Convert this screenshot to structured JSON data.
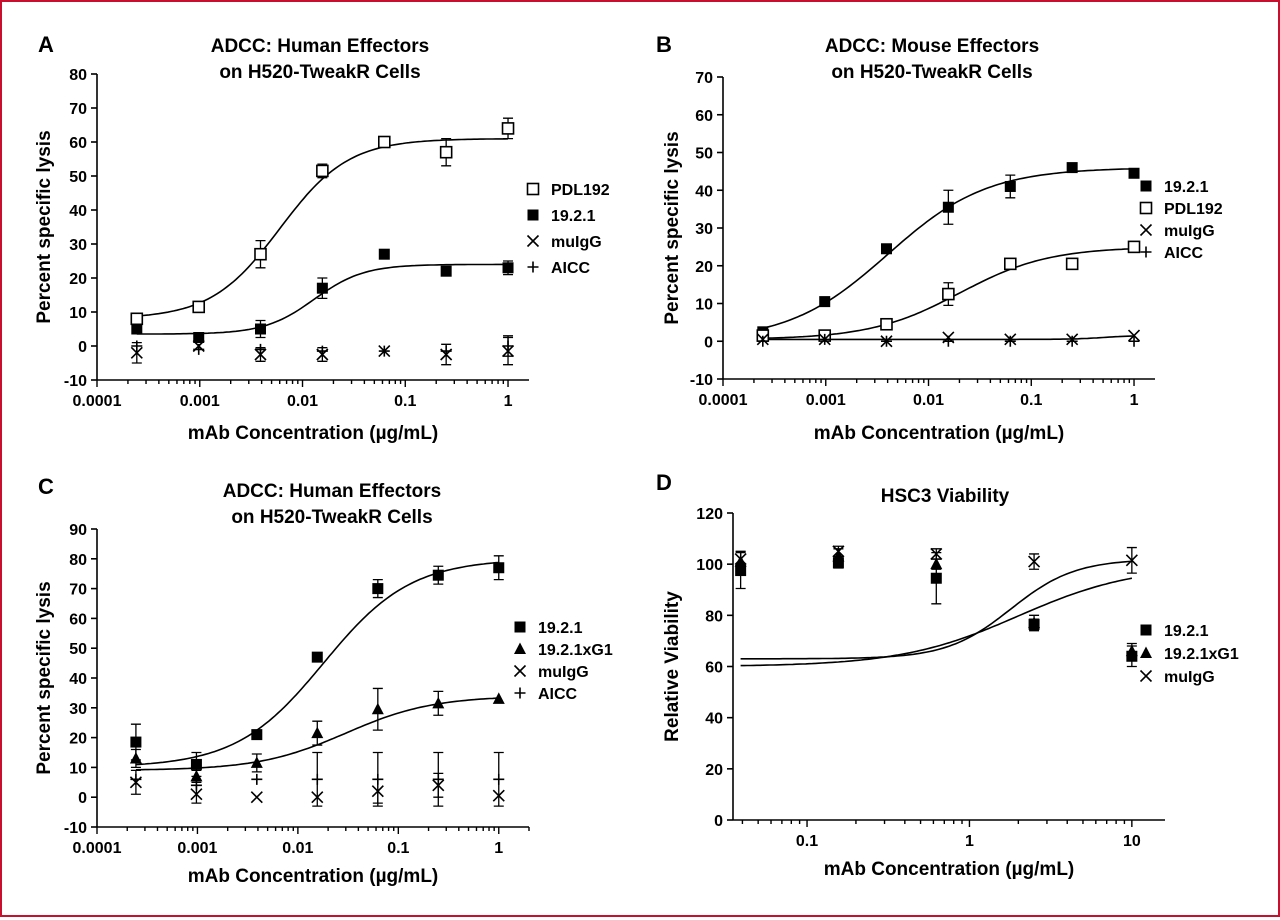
{
  "chart_data": [
    {
      "panel": "A",
      "type": "scatter",
      "title": [
        "ADCC: Human Effectors",
        "on H520-TweakR Cells"
      ],
      "xlabel": "mAb Concentration (µg/mL)",
      "ylabel": "Percent specific lysis",
      "xscale": "log",
      "xlim": [
        0.0001,
        1.6
      ],
      "ylim": [
        -10,
        80
      ],
      "xticks": [
        0.0001,
        0.001,
        0.01,
        0.1,
        1
      ],
      "xtick_labels": [
        "0.0001",
        "0.001",
        "0.01",
        "0.1",
        "1"
      ],
      "yticks": [
        -10,
        0,
        10,
        20,
        30,
        40,
        50,
        60,
        70,
        80
      ],
      "legend_position": "right",
      "series": [
        {
          "name": "PDL192",
          "marker": "open-square",
          "x": [
            0.000244,
            0.000977,
            0.0039,
            0.0156,
            0.0625,
            0.25,
            1
          ],
          "y": [
            8,
            11.5,
            27,
            51.5,
            60,
            57,
            64
          ],
          "err": [
            1,
            1,
            4,
            2,
            1,
            4,
            3
          ],
          "fit": {
            "bottom": 8,
            "top": 61,
            "ec50": 0.006,
            "hill": 1.3
          }
        },
        {
          "name": "19.2.1",
          "marker": "filled-square",
          "x": [
            0.000244,
            0.000977,
            0.0039,
            0.0156,
            0.0625,
            0.25,
            1
          ],
          "y": [
            5,
            2.5,
            5,
            17,
            27,
            22,
            23
          ],
          "err": [
            0,
            0,
            2.5,
            3,
            0,
            0,
            2
          ],
          "fit": {
            "bottom": 3.5,
            "top": 24,
            "ec50": 0.013,
            "hill": 1.8
          }
        },
        {
          "name": "muIgG",
          "marker": "x",
          "x": [
            0.000244,
            0.000977,
            0.0039,
            0.0156,
            0.0625,
            0.25,
            1
          ],
          "y": [
            -2,
            0,
            -2.5,
            -2.5,
            -1.5,
            -2.5,
            -1.5
          ],
          "err": [
            3,
            0,
            2,
            2,
            0,
            3,
            4
          ]
        },
        {
          "name": "AICC",
          "marker": "plus",
          "x": [
            0.000244,
            0.000977,
            0.0039,
            0.0156,
            0.0625,
            0.25,
            1
          ],
          "y": [
            0,
            -1,
            -1,
            -1.5,
            -1.5,
            -1.5,
            0
          ],
          "err": [
            0,
            0,
            0,
            0,
            0,
            0,
            3
          ]
        }
      ]
    },
    {
      "panel": "B",
      "type": "scatter",
      "title": [
        "ADCC: Mouse Effectors",
        "on H520-TweakR Cells"
      ],
      "xlabel": "mAb Concentration (µg/mL)",
      "ylabel": "Percent specific lysis",
      "xscale": "log",
      "xlim": [
        0.0001,
        1.6
      ],
      "ylim": [
        -10,
        70
      ],
      "xticks": [
        0.0001,
        0.001,
        0.01,
        0.1,
        1
      ],
      "xtick_labels": [
        "0.0001",
        "0.001",
        "0.01",
        "0.1",
        "1"
      ],
      "yticks": [
        -10,
        0,
        10,
        20,
        30,
        40,
        50,
        60,
        70
      ],
      "legend_position": "right",
      "series": [
        {
          "name": "19.2.1",
          "marker": "filled-square",
          "x": [
            0.000244,
            0.000977,
            0.0039,
            0.0156,
            0.0625,
            0.25,
            1
          ],
          "y": [
            2.5,
            10.5,
            24.5,
            35.5,
            41,
            46,
            44.5
          ],
          "err": [
            0,
            0,
            0,
            4.5,
            3,
            0,
            0
          ],
          "fit": {
            "bottom": 0,
            "top": 46,
            "ec50": 0.004,
            "hill": 0.9
          }
        },
        {
          "name": "PDL192",
          "marker": "open-square",
          "x": [
            0.000244,
            0.000977,
            0.0039,
            0.0156,
            0.0625,
            0.25,
            1
          ],
          "y": [
            1.5,
            1.5,
            4.5,
            12.5,
            20.5,
            20.5,
            25
          ],
          "err": [
            0,
            0,
            0,
            3,
            0,
            0,
            0
          ],
          "fit": {
            "bottom": 0.5,
            "top": 25,
            "ec50": 0.02,
            "hill": 1.0
          }
        },
        {
          "name": "muIgG",
          "marker": "x",
          "x": [
            0.000244,
            0.000977,
            0.0039,
            0.0156,
            0.0625,
            0.25,
            1
          ],
          "y": [
            0.5,
            0.5,
            0,
            1,
            0.5,
            0.5,
            1.5
          ],
          "err": [
            0,
            0,
            0,
            0,
            0,
            0,
            0
          ],
          "fit": {
            "bottom": 0.5,
            "top": 1.5,
            "ec50": 0.5,
            "hill": 3
          }
        },
        {
          "name": "AICC",
          "marker": "plus",
          "x": [
            0.000244,
            0.000977,
            0.0039,
            0.0156,
            0.0625,
            0.25,
            1
          ],
          "y": [
            0,
            0.5,
            0,
            0,
            0,
            0,
            0
          ],
          "err": [
            0,
            0,
            0,
            0,
            0,
            0,
            0
          ]
        }
      ]
    },
    {
      "panel": "C",
      "type": "scatter",
      "title": [
        "ADCC: Human Effectors",
        "on H520-TweakR Cells"
      ],
      "xlabel": "mAb Concentration (µg/mL)",
      "ylabel": "Percent specific lysis",
      "xscale": "log",
      "xlim": [
        0.0001,
        2
      ],
      "ylim": [
        -10,
        90
      ],
      "xticks": [
        0.0001,
        0.001,
        0.01,
        0.1,
        1
      ],
      "xtick_labels": [
        "0.0001",
        "0.001",
        "0.01",
        "0.1",
        "1"
      ],
      "yticks": [
        -10,
        0,
        10,
        20,
        30,
        40,
        50,
        60,
        70,
        80,
        90
      ],
      "legend_position": "right",
      "series": [
        {
          "name": "19.2.1",
          "marker": "filled-square",
          "x": [
            0.000244,
            0.000977,
            0.0039,
            0.0156,
            0.0625,
            0.25,
            1
          ],
          "y": [
            18.5,
            11,
            21,
            47,
            70,
            74.5,
            77
          ],
          "err": [
            6,
            4,
            0,
            0,
            3,
            3,
            4
          ],
          "fit": {
            "bottom": 10,
            "top": 80,
            "ec50": 0.018,
            "hill": 1.0
          }
        },
        {
          "name": "19.2.1xG1",
          "marker": "filled-triangle",
          "x": [
            0.000244,
            0.000977,
            0.0039,
            0.0156,
            0.0625,
            0.25,
            1
          ],
          "y": [
            13,
            7,
            11.5,
            21.5,
            29.5,
            31.5,
            33
          ],
          "err": [
            3,
            2,
            3,
            4,
            7,
            4,
            0
          ],
          "fit": {
            "bottom": 9,
            "top": 34,
            "ec50": 0.03,
            "hill": 1.0
          }
        },
        {
          "name": "muIgG",
          "marker": "x",
          "x": [
            0.000244,
            0.000977,
            0.0039,
            0.0156,
            0.0625,
            0.25,
            1
          ],
          "y": [
            5,
            1,
            0,
            0,
            2,
            4,
            0.5
          ],
          "err": [
            4,
            3,
            0,
            0,
            4,
            4,
            0
          ]
        },
        {
          "name": "AICC",
          "marker": "plus",
          "x": [
            0.000244,
            0.000977,
            0.0039,
            0.0156,
            0.0625,
            0.25,
            1
          ],
          "y": [
            6,
            4,
            6,
            6,
            6,
            6,
            6
          ],
          "err": [
            0,
            0,
            0,
            9,
            9,
            9,
            9
          ]
        }
      ]
    },
    {
      "panel": "D",
      "type": "scatter",
      "title": [
        "HSC3 Viability"
      ],
      "xlabel": "mAb Concentration (µg/mL)",
      "ylabel": "Relative Viability",
      "xscale": "log",
      "xlim": [
        0.035,
        16
      ],
      "ylim": [
        0,
        120
      ],
      "xticks": [
        0.1,
        1,
        10
      ],
      "xtick_labels": [
        "0.1",
        "1",
        "10"
      ],
      "yticks": [
        0,
        20,
        40,
        60,
        80,
        100,
        120
      ],
      "legend_position": "right",
      "series": [
        {
          "name": "19.2.1",
          "marker": "filled-square",
          "x": [
            0.039,
            0.156,
            0.625,
            2.5,
            10
          ],
          "y": [
            97.5,
            100.5,
            94.5,
            76.5,
            64
          ],
          "err": [
            7,
            2,
            10,
            2,
            4
          ],
          "fit": {
            "bottom": 60,
            "top": 99.5,
            "ec50": 2.0,
            "hill": 1.2
          }
        },
        {
          "name": "19.2.1xG1",
          "marker": "filled-triangle",
          "x": [
            0.039,
            0.156,
            0.625,
            2.5,
            10
          ],
          "y": [
            101,
            103,
            100,
            77,
            66
          ],
          "err": [
            4,
            3,
            2,
            3,
            3
          ],
          "fit": {
            "bottom": 63,
            "top": 102,
            "ec50": 1.8,
            "hill": 2.2
          }
        },
        {
          "name": "muIgG",
          "marker": "x",
          "x": [
            0.039,
            0.156,
            0.625,
            2.5,
            10
          ],
          "y": [
            102,
            105,
            104,
            101,
            101.5
          ],
          "err": [
            3,
            2,
            2,
            3,
            5
          ]
        }
      ]
    }
  ]
}
